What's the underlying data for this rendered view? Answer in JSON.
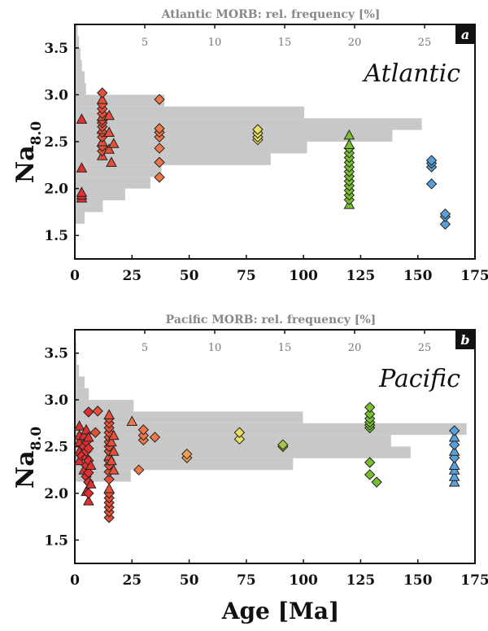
{
  "figure": {
    "xlabel": "Age [Ma]",
    "ylabel_main": "Na",
    "ylabel_sub": "8.0"
  },
  "chart_data": [
    {
      "type": "scatter",
      "panel_label": "a",
      "region": "Atlantic",
      "top_axis_label": "Atlantic MORB: rel. frequency [%]",
      "top_ticks": [
        5,
        10,
        15,
        20,
        25
      ],
      "x_ticks": [
        0,
        25,
        50,
        75,
        100,
        125,
        150,
        175
      ],
      "y_ticks": [
        "1.5",
        "2.0",
        "2.5",
        "3.0",
        "3.5"
      ],
      "xlim": [
        0,
        175
      ],
      "ylim": [
        1.25,
        3.75
      ],
      "top_xlim": [
        0,
        28.6
      ],
      "histogram": {
        "bin_width": 0.125,
        "bins": [
          [
            1.6875,
            0.7
          ],
          [
            1.8125,
            2.0
          ],
          [
            1.9375,
            3.6
          ],
          [
            2.0625,
            5.4
          ],
          [
            2.1875,
            6.2
          ],
          [
            2.3125,
            14.0
          ],
          [
            2.4375,
            16.6
          ],
          [
            2.5625,
            22.7
          ],
          [
            2.6875,
            24.8
          ],
          [
            2.8125,
            16.4
          ],
          [
            2.9375,
            6.4
          ],
          [
            3.0625,
            0.8
          ],
          [
            3.1875,
            0.7
          ],
          [
            3.3125,
            0.5
          ],
          [
            3.4375,
            0.4
          ],
          [
            3.5625,
            0.3
          ],
          [
            3.6875,
            0.2
          ]
        ]
      },
      "series": [
        {
          "color": "#e03030",
          "points": [
            [
              3,
              1.9,
              "t"
            ],
            [
              3,
              1.93,
              "t"
            ],
            [
              3,
              1.96,
              "t"
            ],
            [
              3,
              2.22,
              "t"
            ],
            [
              3,
              2.74,
              "t"
            ]
          ]
        },
        {
          "color": "#e55038",
          "points": [
            [
              12,
              2.35,
              "t"
            ],
            [
              12,
              2.4,
              "d"
            ],
            [
              12,
              2.45,
              "d"
            ],
            [
              12,
              2.5,
              "t"
            ],
            [
              12,
              2.55,
              "d"
            ],
            [
              12,
              2.6,
              "d"
            ],
            [
              12,
              2.63,
              "t"
            ],
            [
              12,
              2.66,
              "d"
            ],
            [
              12,
              2.7,
              "d"
            ],
            [
              12,
              2.73,
              "d"
            ],
            [
              12,
              2.77,
              "t"
            ],
            [
              12,
              2.8,
              "d"
            ],
            [
              12,
              2.85,
              "d"
            ],
            [
              12,
              2.9,
              "d"
            ],
            [
              12,
              2.95,
              "t"
            ],
            [
              12,
              3.02,
              "d"
            ],
            [
              15,
              2.42,
              "t"
            ],
            [
              15,
              2.6,
              "t"
            ],
            [
              15,
              2.78,
              "t"
            ],
            [
              16,
              2.28,
              "t"
            ],
            [
              17,
              2.48,
              "t"
            ]
          ]
        },
        {
          "color": "#f07848",
          "points": [
            [
              37,
              2.12,
              "d"
            ],
            [
              37,
              2.28,
              "d"
            ],
            [
              37,
              2.43,
              "d"
            ],
            [
              37,
              2.55,
              "d"
            ],
            [
              37,
              2.6,
              "d"
            ],
            [
              37,
              2.64,
              "d"
            ],
            [
              37,
              2.95,
              "d"
            ]
          ]
        },
        {
          "color": "#e8e060",
          "points": [
            [
              80,
              2.52,
              "d"
            ],
            [
              80,
              2.55,
              "d"
            ],
            [
              80,
              2.59,
              "d"
            ],
            [
              80,
              2.63,
              "d"
            ]
          ]
        },
        {
          "color": "#78c030",
          "points": [
            [
              120,
              1.83,
              "t"
            ],
            [
              120,
              1.88,
              "d"
            ],
            [
              120,
              1.93,
              "d"
            ],
            [
              120,
              1.98,
              "d"
            ],
            [
              120,
              2.03,
              "d"
            ],
            [
              120,
              2.08,
              "d"
            ],
            [
              120,
              2.13,
              "d"
            ],
            [
              120,
              2.18,
              "d"
            ],
            [
              120,
              2.23,
              "d"
            ],
            [
              120,
              2.28,
              "d"
            ],
            [
              120,
              2.33,
              "d"
            ],
            [
              120,
              2.38,
              "d"
            ],
            [
              120,
              2.43,
              "d"
            ],
            [
              120,
              2.47,
              "t"
            ],
            [
              120,
              2.57,
              "t"
            ]
          ]
        },
        {
          "color": "#5aa0d8",
          "points": [
            [
              156,
              2.05,
              "d"
            ],
            [
              156,
              2.23,
              "d"
            ],
            [
              156,
              2.27,
              "d"
            ],
            [
              156,
              2.3,
              "d"
            ],
            [
              162,
              1.62,
              "d"
            ],
            [
              162,
              1.7,
              "d"
            ],
            [
              162,
              1.73,
              "d"
            ]
          ]
        }
      ]
    },
    {
      "type": "scatter",
      "panel_label": "b",
      "region": "Pacific",
      "top_axis_label": "Pacific MORB: rel. frequency [%]",
      "top_ticks": [
        5,
        10,
        15,
        20,
        25
      ],
      "x_ticks": [
        0,
        25,
        50,
        75,
        100,
        125,
        150,
        175
      ],
      "y_ticks": [
        "1.5",
        "2.0",
        "2.5",
        "3.0",
        "3.5"
      ],
      "xlim": [
        0,
        175
      ],
      "ylim": [
        1.25,
        3.75
      ],
      "top_xlim": [
        0,
        28.6
      ],
      "histogram": {
        "bin_width": 0.125,
        "bins": [
          [
            2.1875,
            4.0
          ],
          [
            2.3125,
            15.6
          ],
          [
            2.4375,
            24.0
          ],
          [
            2.5625,
            22.6
          ],
          [
            2.6875,
            28.0
          ],
          [
            2.8125,
            16.3
          ],
          [
            2.9375,
            4.2
          ],
          [
            3.0625,
            1.0
          ],
          [
            3.1875,
            0.7
          ],
          [
            3.3125,
            0.3
          ],
          [
            3.4375,
            0.15
          ],
          [
            3.5625,
            0.1
          ],
          [
            3.6875,
            0.05
          ]
        ]
      },
      "series": [
        {
          "color": "#e03030",
          "points": [
            [
              2,
              2.35,
              "t"
            ],
            [
              2,
              2.45,
              "t"
            ],
            [
              2,
              2.55,
              "t"
            ],
            [
              2,
              2.62,
              "t"
            ],
            [
              2,
              2.72,
              "t"
            ],
            [
              3,
              2.4,
              "d"
            ],
            [
              4,
              2.25,
              "t"
            ],
            [
              4,
              2.5,
              "d"
            ],
            [
              4,
              2.62,
              "t"
            ],
            [
              5,
              2.02,
              "t"
            ],
            [
              5,
              2.18,
              "d"
            ],
            [
              5,
              2.3,
              "d"
            ],
            [
              5,
              2.38,
              "d"
            ],
            [
              5,
              2.45,
              "d"
            ],
            [
              5,
              2.55,
              "d"
            ],
            [
              5,
              2.68,
              "t"
            ],
            [
              6,
              1.92,
              "t"
            ],
            [
              6,
              2.0,
              "d"
            ],
            [
              6,
              2.12,
              "d"
            ],
            [
              6,
              2.22,
              "d"
            ],
            [
              6,
              2.35,
              "d"
            ],
            [
              6,
              2.48,
              "d"
            ],
            [
              6,
              2.6,
              "t"
            ],
            [
              6,
              2.87,
              "d"
            ],
            [
              7,
              2.1,
              "t"
            ],
            [
              7,
              2.3,
              "t"
            ]
          ]
        },
        {
          "color": "#e55038",
          "points": [
            [
              9,
              2.65,
              "d"
            ],
            [
              10,
              2.88,
              "d"
            ],
            [
              15,
              1.74,
              "d"
            ],
            [
              15,
              1.8,
              "d"
            ],
            [
              15,
              1.85,
              "d"
            ],
            [
              15,
              1.9,
              "d"
            ],
            [
              15,
              1.95,
              "d"
            ],
            [
              15,
              2.0,
              "d"
            ],
            [
              15,
              2.05,
              "t"
            ],
            [
              15,
              2.15,
              "d"
            ],
            [
              15,
              2.23,
              "d"
            ],
            [
              15,
              2.3,
              "d"
            ],
            [
              15,
              2.35,
              "d"
            ],
            [
              15,
              2.4,
              "t"
            ],
            [
              15,
              2.45,
              "d"
            ],
            [
              15,
              2.5,
              "d"
            ],
            [
              15,
              2.55,
              "d"
            ],
            [
              15,
              2.6,
              "d"
            ],
            [
              15,
              2.65,
              "d"
            ],
            [
              15,
              2.7,
              "d"
            ],
            [
              15,
              2.75,
              "d"
            ],
            [
              15,
              2.8,
              "d"
            ],
            [
              15,
              2.84,
              "t"
            ],
            [
              16,
              2.35,
              "t"
            ],
            [
              16,
              2.55,
              "t"
            ],
            [
              17,
              2.25,
              "t"
            ],
            [
              17,
              2.45,
              "t"
            ],
            [
              17,
              2.62,
              "t"
            ]
          ]
        },
        {
          "color": "#f07848",
          "points": [
            [
              25,
              2.77,
              "t"
            ],
            [
              28,
              2.25,
              "d"
            ],
            [
              30,
              2.57,
              "d"
            ],
            [
              30,
              2.62,
              "d"
            ],
            [
              30,
              2.68,
              "d"
            ],
            [
              35,
              2.6,
              "d"
            ]
          ]
        },
        {
          "color": "#f0a050",
          "points": [
            [
              49,
              2.38,
              "d"
            ],
            [
              49,
              2.42,
              "d"
            ]
          ]
        },
        {
          "color": "#e8e060",
          "points": [
            [
              72,
              2.58,
              "d"
            ],
            [
              72,
              2.65,
              "d"
            ]
          ]
        },
        {
          "color": "#a8c840",
          "points": [
            [
              91,
              2.5,
              "d"
            ],
            [
              91,
              2.52,
              "d"
            ]
          ]
        },
        {
          "color": "#78c030",
          "points": [
            [
              129,
              2.2,
              "d"
            ],
            [
              129,
              2.33,
              "d"
            ],
            [
              129,
              2.7,
              "d"
            ],
            [
              129,
              2.73,
              "d"
            ],
            [
              129,
              2.76,
              "d"
            ],
            [
              129,
              2.8,
              "d"
            ],
            [
              129,
              2.85,
              "d"
            ],
            [
              129,
              2.92,
              "d"
            ],
            [
              132,
              2.12,
              "d"
            ]
          ]
        },
        {
          "color": "#5aa0d8",
          "points": [
            [
              166,
              2.12,
              "t"
            ],
            [
              166,
              2.18,
              "t"
            ],
            [
              166,
              2.25,
              "t"
            ],
            [
              166,
              2.3,
              "t"
            ],
            [
              166,
              2.38,
              "d"
            ],
            [
              166,
              2.45,
              "t"
            ],
            [
              166,
              2.52,
              "d"
            ],
            [
              166,
              2.6,
              "t"
            ],
            [
              166,
              2.67,
              "d"
            ]
          ]
        }
      ]
    }
  ]
}
